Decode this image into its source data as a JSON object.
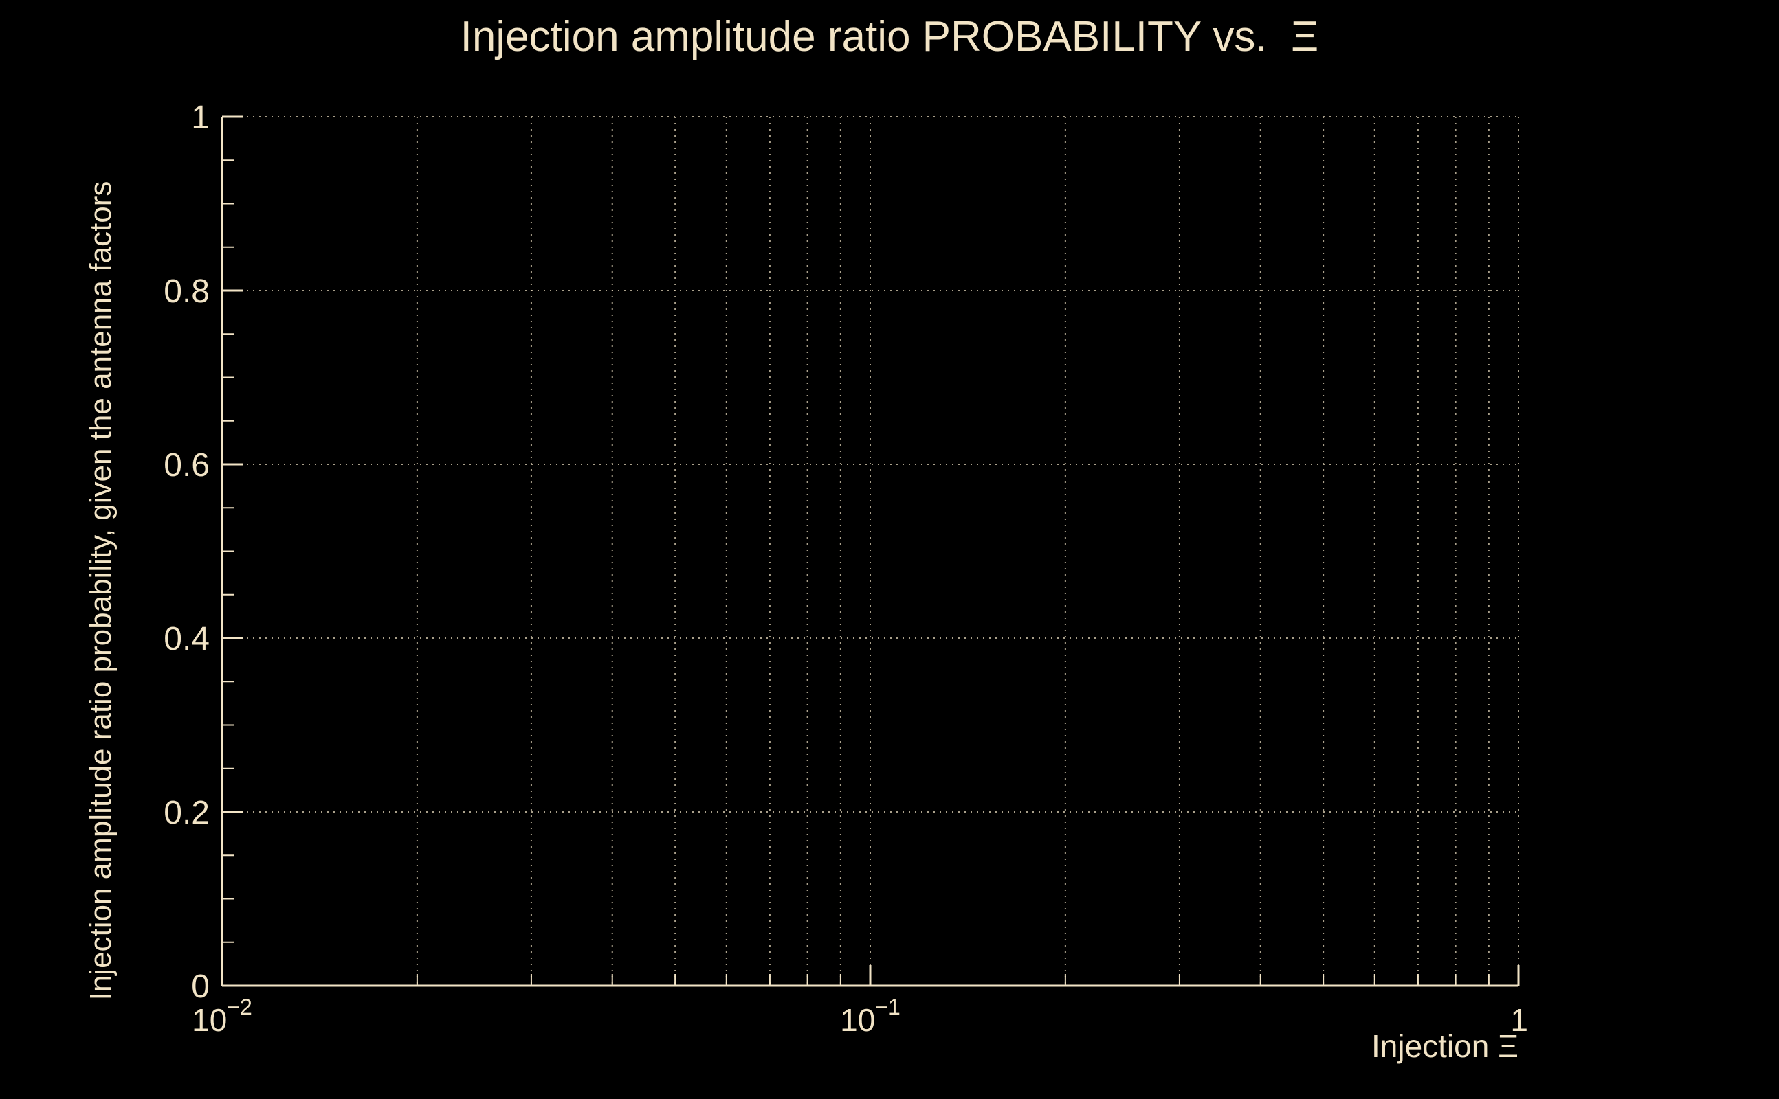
{
  "chart_data": {
    "type": "line",
    "title": "Injection amplitude ratio PROBABILITY vs.  Ξ",
    "xlabel": "Injection Ξ",
    "ylabel": "Injection amplitude ratio probability, given the antenna factors",
    "x_scale": "log",
    "y_scale": "linear",
    "xlim": [
      0.01,
      1
    ],
    "ylim": [
      0,
      1
    ],
    "x_major_ticks": [
      0.01,
      0.1,
      1
    ],
    "x_tick_labels": [
      {
        "base": "10",
        "exp": "−2"
      },
      {
        "base": "10",
        "exp": "−1"
      },
      {
        "base": "1",
        "exp": ""
      }
    ],
    "x_minor_tick_multipliers": [
      2,
      3,
      4,
      5,
      6,
      7,
      8,
      9
    ],
    "y_major_ticks": [
      0,
      0.2,
      0.4,
      0.6,
      0.8,
      1
    ],
    "y_tick_labels": [
      "0",
      "0.2",
      "0.4",
      "0.6",
      "0.8",
      "1"
    ],
    "y_minor_step": 0.05,
    "grid": true,
    "grid_style": "dotted",
    "legend": "none",
    "series": []
  },
  "colors": {
    "background": "#000000",
    "text": "#f2e4c6",
    "axis": "#f2e4c6",
    "grid": "#f2e4c6"
  }
}
